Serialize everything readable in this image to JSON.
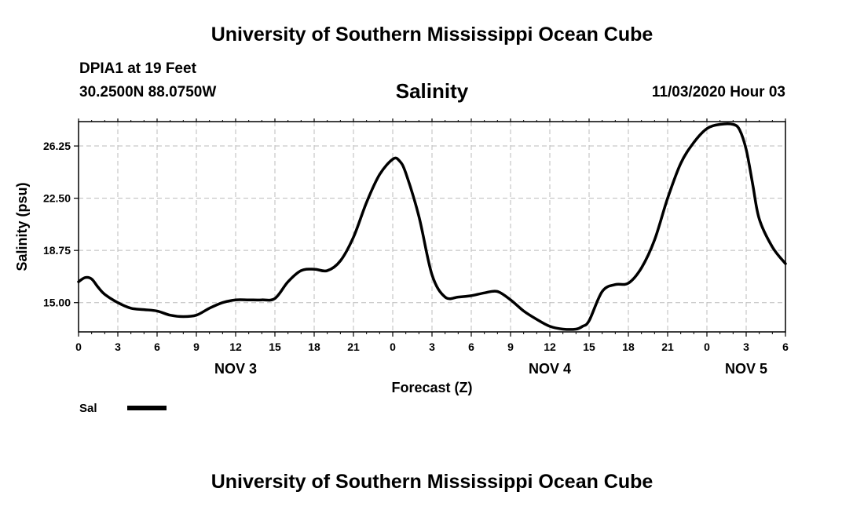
{
  "header": {
    "title": "University of Southern Mississippi Ocean Cube",
    "station": "DPIA1 at 19 Feet",
    "coords": "30.2500N 88.0750W",
    "parameter": "Salinity",
    "datetime": "11/03/2020 Hour 03"
  },
  "footer": {
    "title": "University of Southern Mississippi Ocean Cube"
  },
  "colors": {
    "line": "#000000",
    "grid": "#bbbbbb",
    "background": "#ffffff"
  },
  "chart_data": {
    "type": "line",
    "title": "Salinity",
    "xlabel": "Forecast (Z)",
    "ylabel": "Salinity (psu)",
    "xlim": [
      0,
      54
    ],
    "ylim": [
      12.9,
      28.0
    ],
    "grid": true,
    "legend_position": "bottom-left",
    "x_ticks": [
      0,
      3,
      6,
      9,
      12,
      15,
      18,
      21,
      24,
      27,
      30,
      33,
      36,
      39,
      42,
      45,
      48,
      51,
      54
    ],
    "x_tick_labels": [
      "0",
      "3",
      "6",
      "9",
      "12",
      "15",
      "18",
      "21",
      "0",
      "3",
      "6",
      "9",
      "12",
      "15",
      "18",
      "21",
      "0",
      "3",
      "6"
    ],
    "y_ticks": [
      15.0,
      18.75,
      22.5,
      26.25
    ],
    "y_tick_labels": [
      "15.00",
      "18.75",
      "22.50",
      "26.25"
    ],
    "day_labels": [
      {
        "x": 12,
        "label": "NOV 3"
      },
      {
        "x": 36,
        "label": "NOV 4"
      },
      {
        "x": 51,
        "label": "NOV 5"
      }
    ],
    "series": [
      {
        "name": "Sal",
        "x": [
          0,
          0.5,
          1,
          1.5,
          2,
          3,
          4,
          5,
          6,
          7,
          8,
          9,
          10,
          11,
          12,
          13,
          14,
          15,
          16,
          17,
          18,
          19,
          20,
          21,
          22,
          23,
          24,
          24.5,
          25,
          26,
          27,
          28,
          29,
          30,
          31,
          32,
          33,
          34,
          35,
          36,
          37,
          38,
          38.5,
          39,
          40,
          41,
          42,
          43,
          44,
          45,
          46,
          47,
          48,
          49,
          50,
          50.5,
          51,
          51.5,
          52,
          53,
          54
        ],
        "y": [
          16.5,
          16.8,
          16.7,
          16.1,
          15.6,
          15.0,
          14.6,
          14.5,
          14.4,
          14.1,
          14.0,
          14.1,
          14.6,
          15.0,
          15.2,
          15.2,
          15.2,
          15.3,
          16.5,
          17.3,
          17.4,
          17.3,
          18.0,
          19.7,
          22.2,
          24.2,
          25.3,
          25.2,
          24.3,
          21.2,
          17.0,
          15.4,
          15.4,
          15.5,
          15.7,
          15.8,
          15.2,
          14.4,
          13.8,
          13.3,
          13.1,
          13.1,
          13.3,
          13.7,
          15.8,
          16.3,
          16.4,
          17.5,
          19.5,
          22.5,
          25.0,
          26.5,
          27.5,
          27.8,
          27.8,
          27.4,
          26.0,
          23.5,
          21.0,
          19.0,
          17.8
        ]
      }
    ]
  }
}
